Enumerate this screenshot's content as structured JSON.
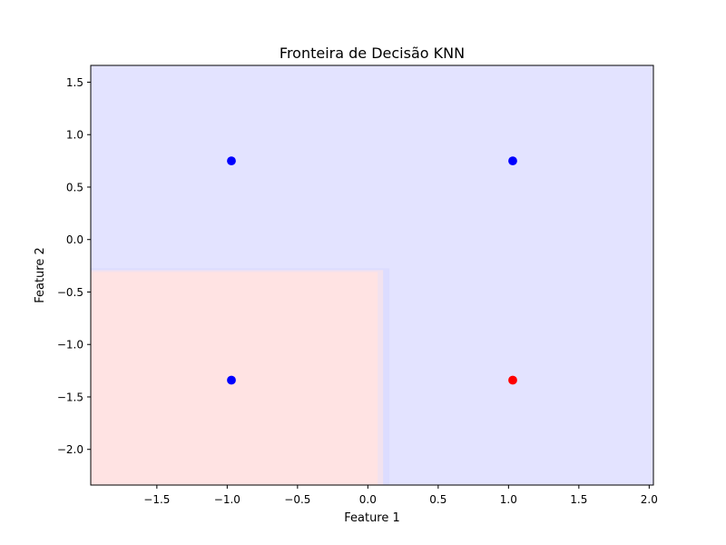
{
  "chart_data": {
    "type": "scatter",
    "title": "Fronteira de Decisão KNN",
    "xlabel": "Feature 1",
    "ylabel": "Feature 2",
    "xlim": [
      -1.97,
      2.03
    ],
    "ylim": [
      -2.34,
      1.66
    ],
    "xticks": [
      -1.5,
      -1.0,
      -0.5,
      0.0,
      0.5,
      1.0,
      1.5,
      2.0
    ],
    "xtick_labels": [
      "−1.5",
      "−1.0",
      "−0.5",
      "0.0",
      "0.5",
      "1.0",
      "1.5",
      "2.0"
    ],
    "yticks": [
      1.5,
      1.0,
      0.5,
      0.0,
      -0.5,
      -1.0,
      -1.5,
      -2.0
    ],
    "ytick_labels": [
      "1.5",
      "1.0",
      "0.5",
      "0.0",
      "−0.5",
      "−1.0",
      "−1.5",
      "−2.0"
    ],
    "grid": false,
    "decision_regions": {
      "background_color": "#e3e3ff",
      "region_color": "#ffe3e3",
      "class_1_region": {
        "x": [
          -1.97,
          0.07
        ],
        "y": [
          -2.34,
          -0.3
        ]
      }
    },
    "points": [
      {
        "x": -0.97,
        "y": 0.75,
        "class": 0,
        "color": "#0000ff"
      },
      {
        "x": 1.03,
        "y": 0.75,
        "class": 0,
        "color": "#0000ff"
      },
      {
        "x": -0.97,
        "y": -1.34,
        "class": 0,
        "color": "#0000ff"
      },
      {
        "x": 1.03,
        "y": -1.34,
        "class": 1,
        "color": "#ff0000"
      }
    ]
  }
}
